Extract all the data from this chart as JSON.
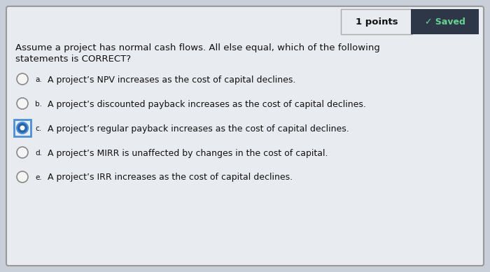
{
  "title_line1": "Assume a project has normal cash flows. All else equal, which of the following",
  "title_line2": "statements is CORRECT?",
  "points_text": "1 points",
  "saved_text": "✓ Saved",
  "options": [
    {
      "label": "a.",
      "text": "A project’s NPV increases as the cost of capital declines.",
      "selected": false
    },
    {
      "label": "b.",
      "text": "A project’s discounted payback increases as the cost of capital declines.",
      "selected": false
    },
    {
      "label": "c.",
      "text": "A project’s regular payback increases as the cost of capital declines.",
      "selected": true
    },
    {
      "label": "d.",
      "text": "A project’s MIRR is unaffected by changes in the cost of capital.",
      "selected": false
    },
    {
      "label": "e.",
      "text": "A project’s IRR increases as the cost of capital declines.",
      "selected": false
    }
  ],
  "bg_color": "#c8cfd8",
  "card_color": "#e8ebef",
  "saved_bg": "#2d3748",
  "saved_text_color": "#68d391",
  "text_color": "#111111",
  "font_size_main": 9.5,
  "font_size_options": 9.0,
  "font_size_label": 7.5
}
